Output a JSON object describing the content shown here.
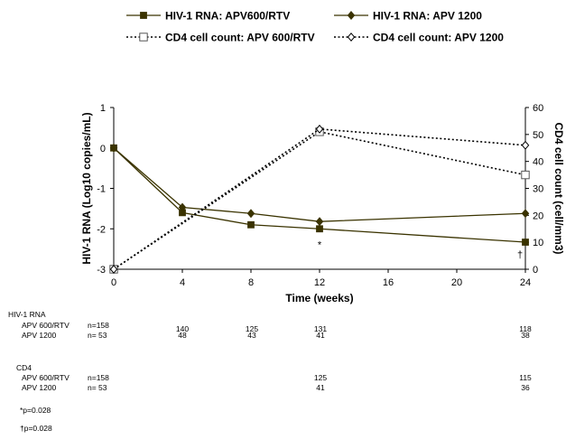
{
  "chart_data": {
    "type": "line",
    "xlabel": "Time (weeks)",
    "ylabel_left": "HIV-1 RNA (Log10 copies/mL)",
    "ylabel_right": "CD4 cell count (cell/mm3)",
    "x_ticks": [
      0,
      4,
      8,
      12,
      16,
      20,
      24
    ],
    "xlim": [
      0,
      24
    ],
    "y_left_ticks": [
      1,
      0,
      -1,
      -2,
      -3
    ],
    "ylim_left": [
      -3,
      1
    ],
    "y_right_ticks": [
      60,
      50,
      40,
      30,
      20,
      10,
      0
    ],
    "ylim_right": [
      0,
      60
    ],
    "grid": false,
    "legend_position": "top",
    "series": [
      {
        "name": "HIV-1 RNA: APV600/RTV",
        "axis": "left",
        "style": "solid",
        "marker": "filled-square",
        "color": "#3a3300",
        "x": [
          0,
          4,
          8,
          12,
          24
        ],
        "y": [
          0,
          -1.6,
          -1.9,
          -2.0,
          -2.33
        ]
      },
      {
        "name": "HIV-1 RNA: APV 1200",
        "axis": "left",
        "style": "solid",
        "marker": "filled-diamond",
        "color": "#3a3300",
        "x": [
          0,
          4,
          8,
          12,
          24
        ],
        "y": [
          0,
          -1.47,
          -1.62,
          -1.82,
          -1.62
        ]
      },
      {
        "name": "CD4 cell count: APV 600/RTV",
        "axis": "right",
        "style": "dotted",
        "marker": "open-square",
        "color": "#000000",
        "x": [
          0,
          12,
          24
        ],
        "y": [
          0,
          51,
          35
        ]
      },
      {
        "name": "CD4 cell count: APV 1200",
        "axis": "right",
        "style": "dotted",
        "marker": "open-diamond",
        "color": "#000000",
        "x": [
          0,
          12,
          24
        ],
        "y": [
          0,
          52,
          46
        ]
      }
    ],
    "annotations": [
      {
        "text": "*",
        "x": 12,
        "y_left": -2.47
      },
      {
        "text": "†",
        "x": 24,
        "y_left": -2.72
      }
    ]
  },
  "table": {
    "rna_header": "HIV-1 RNA",
    "rna_rows": [
      {
        "label": "APV 600/RTV",
        "n": "n=158",
        "values": [
          "140",
          "125",
          "131",
          "118"
        ]
      },
      {
        "label": "APV 1200",
        "n": "n=  53",
        "values": [
          "48",
          "43",
          "41",
          "38"
        ]
      }
    ],
    "cd4_header": "CD4",
    "cd4_rows": [
      {
        "label": "APV 600/RTV",
        "n": "n=158",
        "values": [
          "125",
          "115"
        ]
      },
      {
        "label": "APV 1200",
        "n": "n=  53",
        "values": [
          "41",
          "36"
        ]
      }
    ]
  },
  "notes": [
    "*p=0.028",
    "†p=0.028"
  ]
}
